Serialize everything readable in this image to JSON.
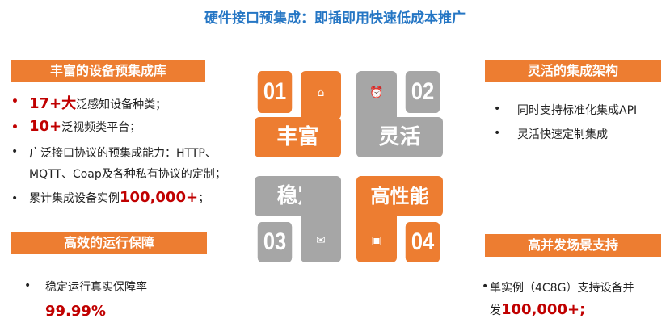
{
  "title": "硬件接口预集成：即插即用快速低成本推广",
  "left_top": {
    "header": "丰富的设备预集成库",
    "items": [
      {
        "strong": "17+大",
        "text": "泛感知设备种类；"
      },
      {
        "strong": "10+",
        "text": "泛视频类平台；"
      },
      {
        "strong": "",
        "text": "广泛接口协议的预集成能力：HTTP、",
        "text2": "MQTT、Coap及各种私有协议的定制；"
      },
      {
        "strong": "100,000+",
        "text": "累计集成设备实例",
        "after": "；"
      }
    ]
  },
  "left_bottom": {
    "header": "高效的运行保障",
    "item": "稳定运行真实保障率",
    "value": "99.99%"
  },
  "right_top": {
    "header": "灵活的集成架构",
    "items": [
      "同时支持标准化集成API",
      "灵活快速定制集成"
    ]
  },
  "right_bottom": {
    "header": "高并发场景支持",
    "item": "单实例（4C8G）支持设备并",
    "item2_prefix": "发",
    "value": "100,000+;"
  },
  "tiles": [
    {
      "number": "01",
      "word": "丰富",
      "icon": "house-icon",
      "color": "#ed7d31"
    },
    {
      "number": "02",
      "word": "灵活",
      "icon": "alarm-clock-icon",
      "color": "#a6a6a6"
    },
    {
      "number": "03",
      "word": "稳定",
      "icon": "envelope-icon",
      "color": "#a6a6a6"
    },
    {
      "number": "04",
      "word": "高性能",
      "icon": "chat-icon",
      "color": "#ed7d31"
    }
  ],
  "bullet": "•"
}
